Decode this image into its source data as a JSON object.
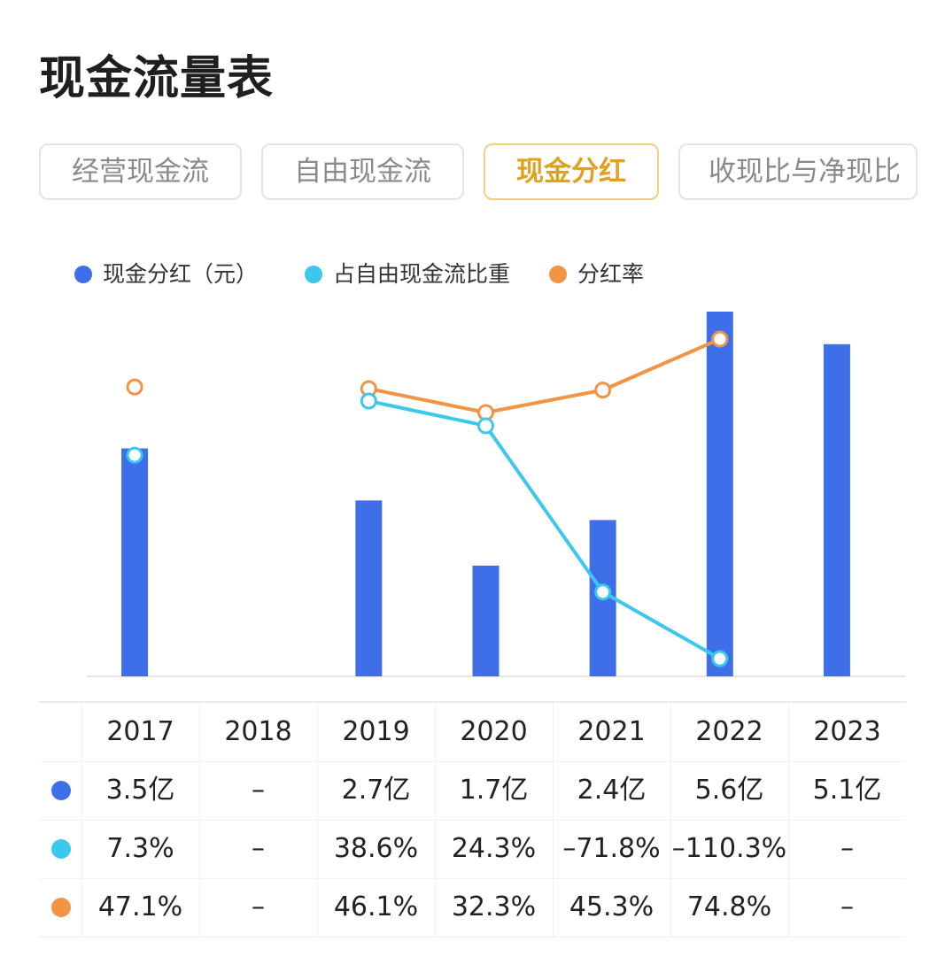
{
  "page": {
    "title": "现金流量表"
  },
  "tabs": [
    {
      "label": "经营现金流",
      "active": false
    },
    {
      "label": "自由现金流",
      "active": false
    },
    {
      "label": "现金分红",
      "active": true
    },
    {
      "label": "收现比与净现比",
      "active": false
    }
  ],
  "colors": {
    "dividend": "#3f6fe8",
    "fcf_share": "#3cc8ee",
    "payout": "#f29443",
    "active_tab": "#e0a020"
  },
  "chart_data": {
    "type": "bar+line",
    "categories": [
      "2017",
      "2018",
      "2019",
      "2020",
      "2021",
      "2022",
      "2023"
    ],
    "legend": [
      "现金分红（元）",
      "占自由现金流比重",
      "分红率"
    ],
    "series": [
      {
        "name": "现金分红（元）",
        "type": "bar",
        "unit": "亿",
        "values": [
          3.5,
          null,
          2.7,
          1.7,
          2.4,
          5.6,
          5.1
        ]
      },
      {
        "name": "占自由现金流比重",
        "type": "line",
        "unit": "%",
        "values": [
          7.3,
          null,
          38.6,
          24.3,
          -71.8,
          -110.3,
          null
        ]
      },
      {
        "name": "分红率",
        "type": "line",
        "unit": "%",
        "values": [
          47.1,
          null,
          46.1,
          32.3,
          45.3,
          74.8,
          null
        ]
      }
    ]
  },
  "table": {
    "years": [
      "2017",
      "2018",
      "2019",
      "2020",
      "2021",
      "2022",
      "2023"
    ],
    "rows": [
      {
        "key": "dividend",
        "cells": [
          "3.5亿",
          "–",
          "2.7亿",
          "1.7亿",
          "2.4亿",
          "5.6亿",
          "5.1亿"
        ]
      },
      {
        "key": "fcf_share",
        "cells": [
          "7.3%",
          "–",
          "38.6%",
          "24.3%",
          "–71.8%",
          "–110.3%",
          "–"
        ]
      },
      {
        "key": "payout",
        "cells": [
          "47.1%",
          "–",
          "46.1%",
          "32.3%",
          "45.3%",
          "74.8%",
          "–"
        ]
      }
    ]
  }
}
